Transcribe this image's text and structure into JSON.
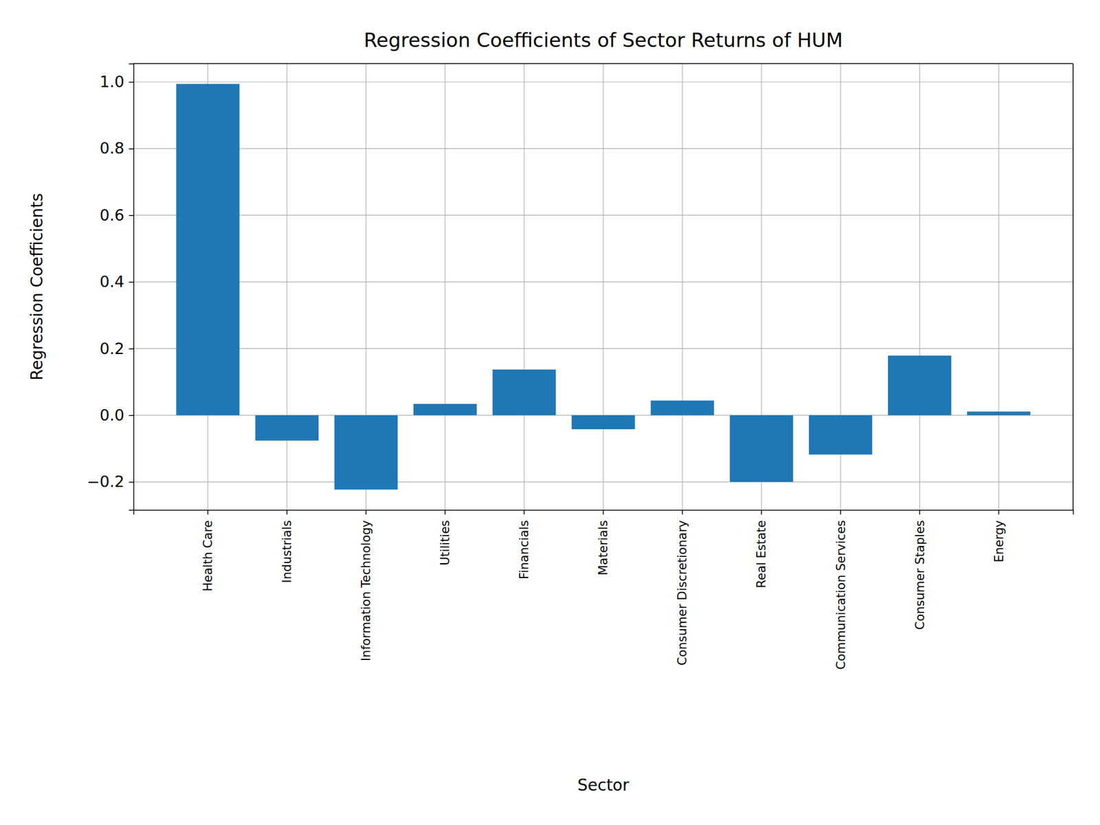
{
  "chart_data": {
    "type": "bar",
    "title": "Regression Coefficients of Sector Returns of HUM",
    "x_label": "Sector",
    "y_label": "Regression Coefficients",
    "categories": [
      "Health Care",
      "Industrials",
      "Information Technology",
      "Utilities",
      "Financials",
      "Materials",
      "Consumer Discretionary",
      "Real Estate",
      "Communication Services",
      "Consumer Staples",
      "Energy"
    ],
    "values": [
      0.994,
      -0.076,
      -0.223,
      0.034,
      0.137,
      -0.042,
      0.044,
      -0.2,
      -0.118,
      0.179,
      0.011
    ],
    "color": "#1f77b4",
    "ylim": [
      -0.284,
      1.055
    ],
    "yticks": [
      {
        "value": -0.2,
        "label": "−0.2"
      },
      {
        "value": 0,
        "label": "0.0"
      },
      0.2,
      0.4,
      0.6,
      0.8,
      {
        "value": 1,
        "label": "1.0"
      }
    ],
    "grid": true
  }
}
